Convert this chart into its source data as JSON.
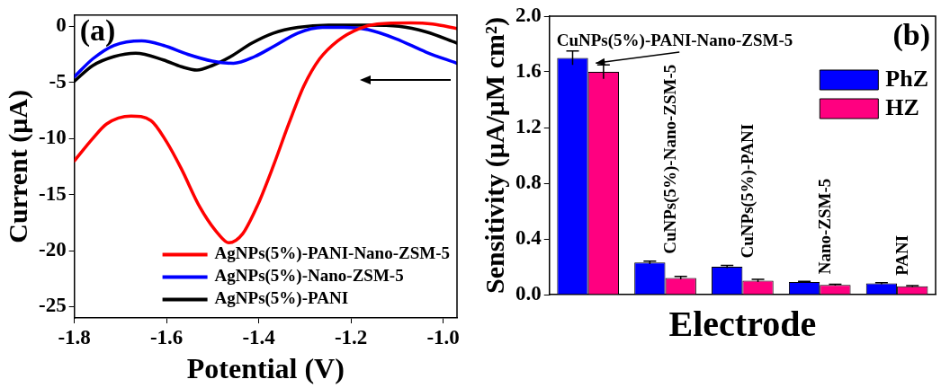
{
  "chart_data": [
    {
      "type": "line",
      "xlabel": "Potential (V)",
      "ylabel": "Current (μA)",
      "annotations": [
        "(a)"
      ],
      "legend": "bottom right",
      "marker": "none",
      "line_style": "solid",
      "grid": false,
      "xlim": [
        -1.8,
        -0.97
      ],
      "xticks": [
        -1.8,
        -1.6,
        -1.4,
        -1.2,
        {
          "value": -1.0,
          "label": "-1.0"
        }
      ],
      "ylim": [
        -26,
        1
      ],
      "yticks": [
        0,
        -5,
        -10,
        -15,
        -20,
        -25
      ],
      "series": [
        {
          "name": "AgNPs(5%)-PANI-Nano-ZSM-5",
          "color": "#ff0000",
          "x": [
            -1.8,
            -1.76,
            -1.73,
            -1.677,
            -1.634,
            -1.6,
            -1.568,
            -1.528,
            -1.488,
            -1.465,
            -1.435,
            -1.402,
            -1.368,
            -1.335,
            -1.302,
            -1.268,
            -1.229,
            -1.182,
            -1.143,
            -1.07,
            -1.023,
            -0.97
          ],
          "values": [
            -12.0,
            -10.0,
            -8.7,
            -8.0,
            -8.4,
            -10.3,
            -12.7,
            -16.1,
            -18.5,
            -19.3,
            -18.5,
            -15.9,
            -12.4,
            -8.7,
            -5.3,
            -2.9,
            -1.3,
            -0.2,
            0.2,
            0.3,
            0.2,
            -0.2
          ]
        },
        {
          "name": "AgNPs(5%)-Nano-ZSM-5",
          "color": "#0000ff",
          "x": [
            -1.8,
            -1.76,
            -1.714,
            -1.654,
            -1.607,
            -1.554,
            -1.501,
            -1.455,
            -1.409,
            -1.368,
            -1.315,
            -1.262,
            -1.216,
            -1.163,
            -1.103,
            -1.037,
            -0.97
          ],
          "values": [
            -4.5,
            -2.9,
            -1.7,
            -1.3,
            -1.7,
            -2.5,
            -3.1,
            -3.3,
            -2.7,
            -1.8,
            -0.6,
            -0.1,
            -0.1,
            -0.3,
            -1.1,
            -2.3,
            -3.3
          ]
        },
        {
          "name": "AgNPs(5%)-PANI",
          "color": "#000000",
          "x": [
            -1.8,
            -1.76,
            -1.714,
            -1.667,
            -1.607,
            -1.568,
            -1.534,
            -1.501,
            -1.461,
            -1.415,
            -1.368,
            -1.315,
            -1.249,
            -1.163,
            -1.096,
            -1.037,
            -0.97
          ],
          "values": [
            -4.9,
            -3.5,
            -2.7,
            -2.4,
            -3.0,
            -3.6,
            -3.9,
            -3.5,
            -2.7,
            -1.5,
            -0.6,
            -0.1,
            0.1,
            0.1,
            0.0,
            -0.5,
            -1.5
          ]
        }
      ]
    },
    {
      "type": "bar",
      "xlabel": "Electrode",
      "ylabel": "Sensitivity (μA/μM cm²)",
      "annotations": [
        "(b)"
      ],
      "legend": "top right",
      "grid": false,
      "tick_labels": "y",
      "categories": [
        "CuNPs(5%)-PANI-Nano-ZSM-5",
        "CuNPs(5%)-Nano-ZSM-5",
        "CuNPs(5%)-PANI",
        "Nano-ZSM-5",
        "PANI"
      ],
      "ylim": [
        0,
        2
      ],
      "yticks": [
        {
          "value": 0,
          "label": "0.0"
        },
        0.4,
        0.8,
        1.2,
        1.6,
        {
          "value": 2,
          "label": "2.0"
        }
      ],
      "series": [
        {
          "name": "PhZ",
          "color": "#0000ff",
          "values": [
            1.7,
            0.23,
            0.2,
            0.09,
            0.08
          ],
          "errors": [
            0.05,
            0.01,
            0.01,
            0.005,
            0.005
          ]
        },
        {
          "name": "HZ",
          "color": "#ff0080",
          "values": [
            1.6,
            0.12,
            0.1,
            0.07,
            0.06
          ],
          "errors": [
            0.05,
            0.01,
            0.01,
            0.005,
            0.005
          ]
        }
      ]
    }
  ]
}
